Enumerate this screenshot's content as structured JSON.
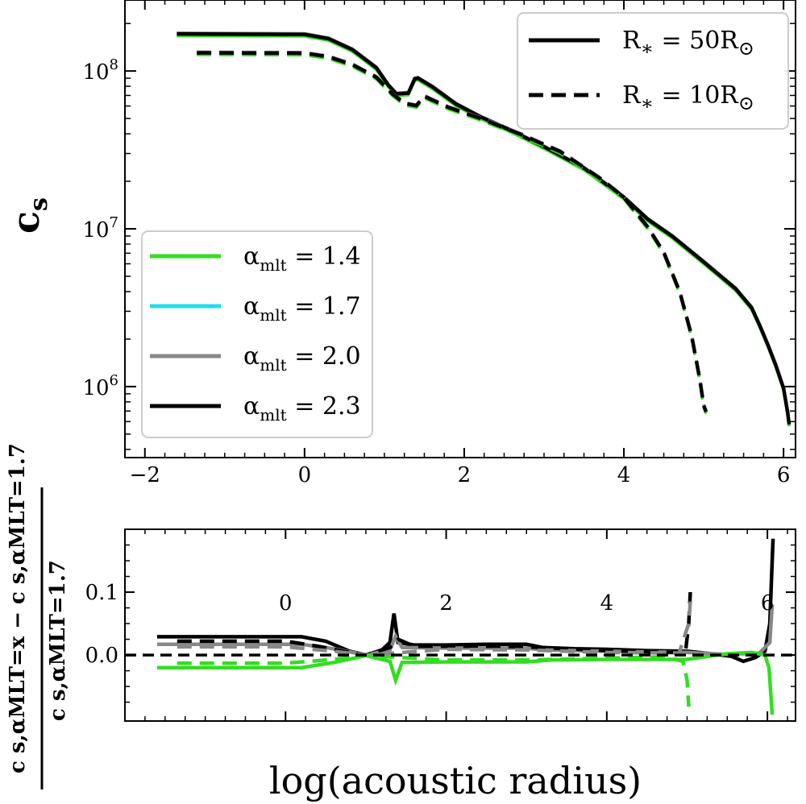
{
  "chart_data": [
    {
      "type": "line",
      "panel": "top",
      "ylabel_main": "c",
      "ylabel_sub": "s",
      "yscale": "log",
      "xlim": [
        -2.25,
        6.15
      ],
      "ylim_log10": [
        5.55,
        8.45
      ],
      "x_ticks": [
        -2,
        0,
        2,
        4,
        6
      ],
      "x_tick_labels": [
        "−2",
        "0",
        "2",
        "4",
        "6"
      ],
      "y_ticks": [
        {
          "base": "10",
          "exp": "8",
          "value_log10": 8
        },
        {
          "base": "10",
          "exp": "7",
          "value_log10": 7
        },
        {
          "base": "10",
          "exp": "6",
          "value_log10": 6
        }
      ],
      "legend_alpha": {
        "position": "lower-left",
        "entries": [
          {
            "symbol": "α",
            "sub": "mlt",
            "text": " = 1.4",
            "color": "#33dd22"
          },
          {
            "symbol": "α",
            "sub": "mlt",
            "text": " = 1.7",
            "color": "#22ddf0"
          },
          {
            "symbol": "α",
            "sub": "mlt",
            "text": " = 2.0",
            "color": "#888888"
          },
          {
            "symbol": "α",
            "sub": "mlt",
            "text": " = 2.3",
            "color": "#000000"
          }
        ]
      },
      "legend_radius": {
        "position": "upper-right",
        "entries": [
          {
            "label": "R",
            "star": "∗",
            "value": " = 50R",
            "sun": "⊙",
            "linestyle": "solid"
          },
          {
            "label": "R",
            "star": "∗",
            "value": " = 10R",
            "sun": "⊙",
            "linestyle": "dashed"
          }
        ]
      },
      "series": [
        {
          "name": "R* = 50Rsun, alpha_mlt = 2.3",
          "linestyle": "solid",
          "color": "#000000",
          "points": [
            [
              -1.6,
              8.235
            ],
            [
              0,
              8.232
            ],
            [
              0.3,
              8.205
            ],
            [
              0.6,
              8.135
            ],
            [
              0.9,
              8.02
            ],
            [
              1.05,
              7.91
            ],
            [
              1.15,
              7.855
            ],
            [
              1.3,
              7.86
            ],
            [
              1.38,
              7.95
            ],
            [
              1.42,
              7.955
            ],
            [
              1.6,
              7.9
            ],
            [
              1.9,
              7.79
            ],
            [
              2.2,
              7.71
            ],
            [
              2.6,
              7.62
            ],
            [
              3.0,
              7.52
            ],
            [
              3.5,
              7.385
            ],
            [
              4.0,
              7.2
            ],
            [
              4.3,
              7.06
            ],
            [
              4.6,
              6.955
            ],
            [
              5.0,
              6.79
            ],
            [
              5.4,
              6.62
            ],
            [
              5.6,
              6.5
            ],
            [
              5.7,
              6.39
            ],
            [
              5.8,
              6.27
            ],
            [
              5.9,
              6.14
            ],
            [
              6.0,
              5.99
            ],
            [
              6.05,
              5.84
            ],
            [
              6.07,
              5.76
            ]
          ]
        },
        {
          "name": "R* = 10Rsun, alpha_mlt = 2.3",
          "linestyle": "dashed",
          "color": "#000000",
          "points": [
            [
              -1.35,
              8.115
            ],
            [
              0,
              8.113
            ],
            [
              0.3,
              8.09
            ],
            [
              0.6,
              8.04
            ],
            [
              0.9,
              7.96
            ],
            [
              1.1,
              7.855
            ],
            [
              1.25,
              7.795
            ],
            [
              1.4,
              7.78
            ],
            [
              1.5,
              7.84
            ],
            [
              1.8,
              7.77
            ],
            [
              2.2,
              7.7
            ],
            [
              2.7,
              7.6
            ],
            [
              3.2,
              7.49
            ],
            [
              3.7,
              7.32
            ],
            [
              4.0,
              7.2
            ],
            [
              4.3,
              7.01
            ],
            [
              4.5,
              6.85
            ],
            [
              4.7,
              6.6
            ],
            [
              4.85,
              6.32
            ],
            [
              4.95,
              6.05
            ],
            [
              5.0,
              5.88
            ],
            [
              5.03,
              5.84
            ]
          ]
        }
      ]
    },
    {
      "type": "line",
      "panel": "bottom",
      "xlabel": "log(acoustic radius)",
      "ylabel_numerator": "c s,αMLT=x − c s,αMLT=1.7",
      "ylabel_denominator": "c s,αMLT=1.7",
      "xlim": [
        -2.0,
        6.35
      ],
      "ylim": [
        -0.105,
        0.2
      ],
      "x_ticks": [
        0,
        2,
        4,
        6
      ],
      "x_tick_labels": [
        "0",
        "2",
        "4",
        "6"
      ],
      "y_ticks": [
        0.0,
        0.1
      ],
      "y_tick_labels": [
        "0.0",
        "0.1"
      ],
      "series": [
        {
          "name": "alpha_mlt = 2.3 (50Rsun)",
          "color": "#000000",
          "linestyle": "solid",
          "points": [
            [
              -1.6,
              0.029
            ],
            [
              0.2,
              0.029
            ],
            [
              0.5,
              0.022
            ],
            [
              0.8,
              0.006
            ],
            [
              1.0,
              0.0
            ],
            [
              1.2,
              0.008
            ],
            [
              1.3,
              0.02
            ],
            [
              1.35,
              0.066
            ],
            [
              1.4,
              0.02
            ],
            [
              1.6,
              0.016
            ],
            [
              2.0,
              0.016
            ],
            [
              2.5,
              0.017
            ],
            [
              3.0,
              0.017
            ],
            [
              3.2,
              0.012
            ],
            [
              3.6,
              0.01
            ],
            [
              4.0,
              0.009
            ],
            [
              4.5,
              0.007
            ],
            [
              5.0,
              0.006
            ],
            [
              5.3,
              0.002
            ],
            [
              5.55,
              -0.002
            ],
            [
              5.7,
              -0.01
            ],
            [
              5.85,
              -0.004
            ],
            [
              5.97,
              0.006
            ],
            [
              6.03,
              0.05
            ],
            [
              6.07,
              0.185
            ]
          ]
        },
        {
          "name": "alpha_mlt = 2.0 (50Rsun)",
          "color": "#888888",
          "linestyle": "solid",
          "points": [
            [
              -1.6,
              0.017
            ],
            [
              0.2,
              0.017
            ],
            [
              0.6,
              0.01
            ],
            [
              1.0,
              0.0
            ],
            [
              1.3,
              0.008
            ],
            [
              1.37,
              0.03
            ],
            [
              1.45,
              0.012
            ],
            [
              2.0,
              0.011
            ],
            [
              3.0,
              0.011
            ],
            [
              3.2,
              0.008
            ],
            [
              4.0,
              0.006
            ],
            [
              5.0,
              0.004
            ],
            [
              5.5,
              0.001
            ],
            [
              5.9,
              0.003
            ],
            [
              6.03,
              0.02
            ],
            [
              6.06,
              0.08
            ]
          ]
        },
        {
          "name": "alpha_mlt = 1.4 (50Rsun)",
          "color": "#33dd22",
          "linestyle": "solid",
          "points": [
            [
              -1.6,
              -0.02
            ],
            [
              0.2,
              -0.02
            ],
            [
              0.6,
              -0.012
            ],
            [
              1.0,
              -0.001
            ],
            [
              1.3,
              -0.01
            ],
            [
              1.37,
              -0.04
            ],
            [
              1.45,
              -0.012
            ],
            [
              2.0,
              -0.011
            ],
            [
              3.0,
              -0.011
            ],
            [
              3.3,
              -0.008
            ],
            [
              4.0,
              -0.007
            ],
            [
              5.0,
              -0.007
            ],
            [
              5.5,
              0.002
            ],
            [
              5.8,
              0.004
            ],
            [
              5.97,
              0.0
            ],
            [
              6.02,
              -0.02
            ],
            [
              6.06,
              -0.095
            ]
          ]
        },
        {
          "name": "alpha_mlt = 2.3 (10Rsun)",
          "color": "#000000",
          "linestyle": "dashed",
          "points": [
            [
              -1.35,
              0.022
            ],
            [
              0.0,
              0.022
            ],
            [
              0.4,
              0.014
            ],
            [
              0.8,
              0.004
            ],
            [
              1.0,
              0.0
            ],
            [
              1.3,
              0.012
            ],
            [
              1.4,
              0.025
            ],
            [
              1.6,
              0.014
            ],
            [
              2.5,
              0.014
            ],
            [
              3.0,
              0.013
            ],
            [
              4.0,
              0.007
            ],
            [
              4.8,
              0.004
            ],
            [
              4.98,
              0.005
            ],
            [
              5.02,
              0.05
            ],
            [
              5.04,
              0.1
            ]
          ]
        },
        {
          "name": "alpha_mlt = 2.0 (10Rsun)",
          "color": "#888888",
          "linestyle": "dashed",
          "points": [
            [
              -1.35,
              0.013
            ],
            [
              0.0,
              0.013
            ],
            [
              0.6,
              0.006
            ],
            [
              1.0,
              0.0
            ],
            [
              2.0,
              0.009
            ],
            [
              3.0,
              0.008
            ],
            [
              4.0,
              0.004
            ],
            [
              4.9,
              0.003
            ],
            [
              5.02,
              0.05
            ],
            [
              5.04,
              0.085
            ]
          ]
        },
        {
          "name": "alpha_mlt = 1.4 (10Rsun)",
          "color": "#33dd22",
          "linestyle": "dashed",
          "points": [
            [
              -1.35,
              -0.013
            ],
            [
              0.0,
              -0.013
            ],
            [
              0.6,
              -0.007
            ],
            [
              1.0,
              -0.001
            ],
            [
              2.0,
              -0.008
            ],
            [
              3.0,
              -0.008
            ],
            [
              4.0,
              -0.005
            ],
            [
              4.7,
              -0.003
            ],
            [
              4.95,
              -0.01
            ],
            [
              5.0,
              -0.04
            ],
            [
              5.02,
              -0.082
            ]
          ]
        },
        {
          "name": "zero reference",
          "color": "#000000",
          "linestyle": "dashed",
          "points": [
            [
              -2.0,
              0.0
            ],
            [
              6.35,
              0.0
            ]
          ]
        }
      ]
    }
  ]
}
